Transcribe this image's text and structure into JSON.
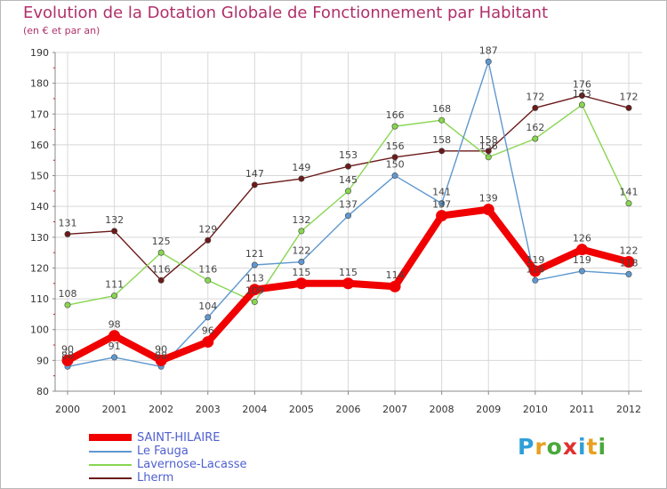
{
  "chart_data": {
    "type": "line",
    "title": "Evolution de la Dotation Globale de Fonctionnement par Habitant",
    "subtitle": "(en € et par an)",
    "xlabel": "",
    "ylabel": "",
    "ylim": [
      80,
      190
    ],
    "yticks": [
      80,
      90,
      100,
      110,
      120,
      130,
      140,
      150,
      160,
      170,
      180,
      190
    ],
    "categories": [
      "2000",
      "2001",
      "2002",
      "2003",
      "2004",
      "2005",
      "2006",
      "2007",
      "2008",
      "2009",
      "2010",
      "2011",
      "2012"
    ],
    "grid": true,
    "legend_position": "bottom-left",
    "series": [
      {
        "name": "Lherm",
        "color": "#6b1a1a",
        "values": [
          131,
          132,
          116,
          129,
          147,
          149,
          153,
          156,
          158,
          158,
          172,
          176,
          172
        ]
      },
      {
        "name": "Lavernose-Lacasse",
        "color": "#88d650",
        "values": [
          108,
          111,
          125,
          116,
          109,
          132,
          145,
          166,
          168,
          156,
          162,
          173,
          141
        ]
      },
      {
        "name": "Le Fauga",
        "color": "#5f98cf",
        "values": [
          88,
          91,
          88,
          104,
          121,
          122,
          137,
          150,
          141,
          187,
          116,
          119,
          118
        ]
      },
      {
        "name": "SAINT-HILAIRE",
        "color": "#f00000",
        "values": [
          90,
          98,
          90,
          96,
          113,
          115,
          115,
          114,
          137,
          139,
          119,
          126,
          122
        ]
      }
    ]
  },
  "legend": {
    "items": [
      {
        "label": "SAINT-HILAIRE",
        "color": "#f00000"
      },
      {
        "label": "Le Fauga",
        "color": "#5f98cf"
      },
      {
        "label": "Lavernose-Lacasse",
        "color": "#88d650"
      },
      {
        "label": "Lherm",
        "color": "#6b1a1a"
      }
    ]
  },
  "logo": {
    "letters": [
      "P",
      "r",
      "o",
      "x",
      "i",
      "t",
      "i"
    ],
    "colors": [
      "#2f9fd8",
      "#e8a020",
      "#4aa83c",
      "#e03030",
      "#2f9fd8",
      "#e8a020",
      "#4aa83c"
    ]
  }
}
